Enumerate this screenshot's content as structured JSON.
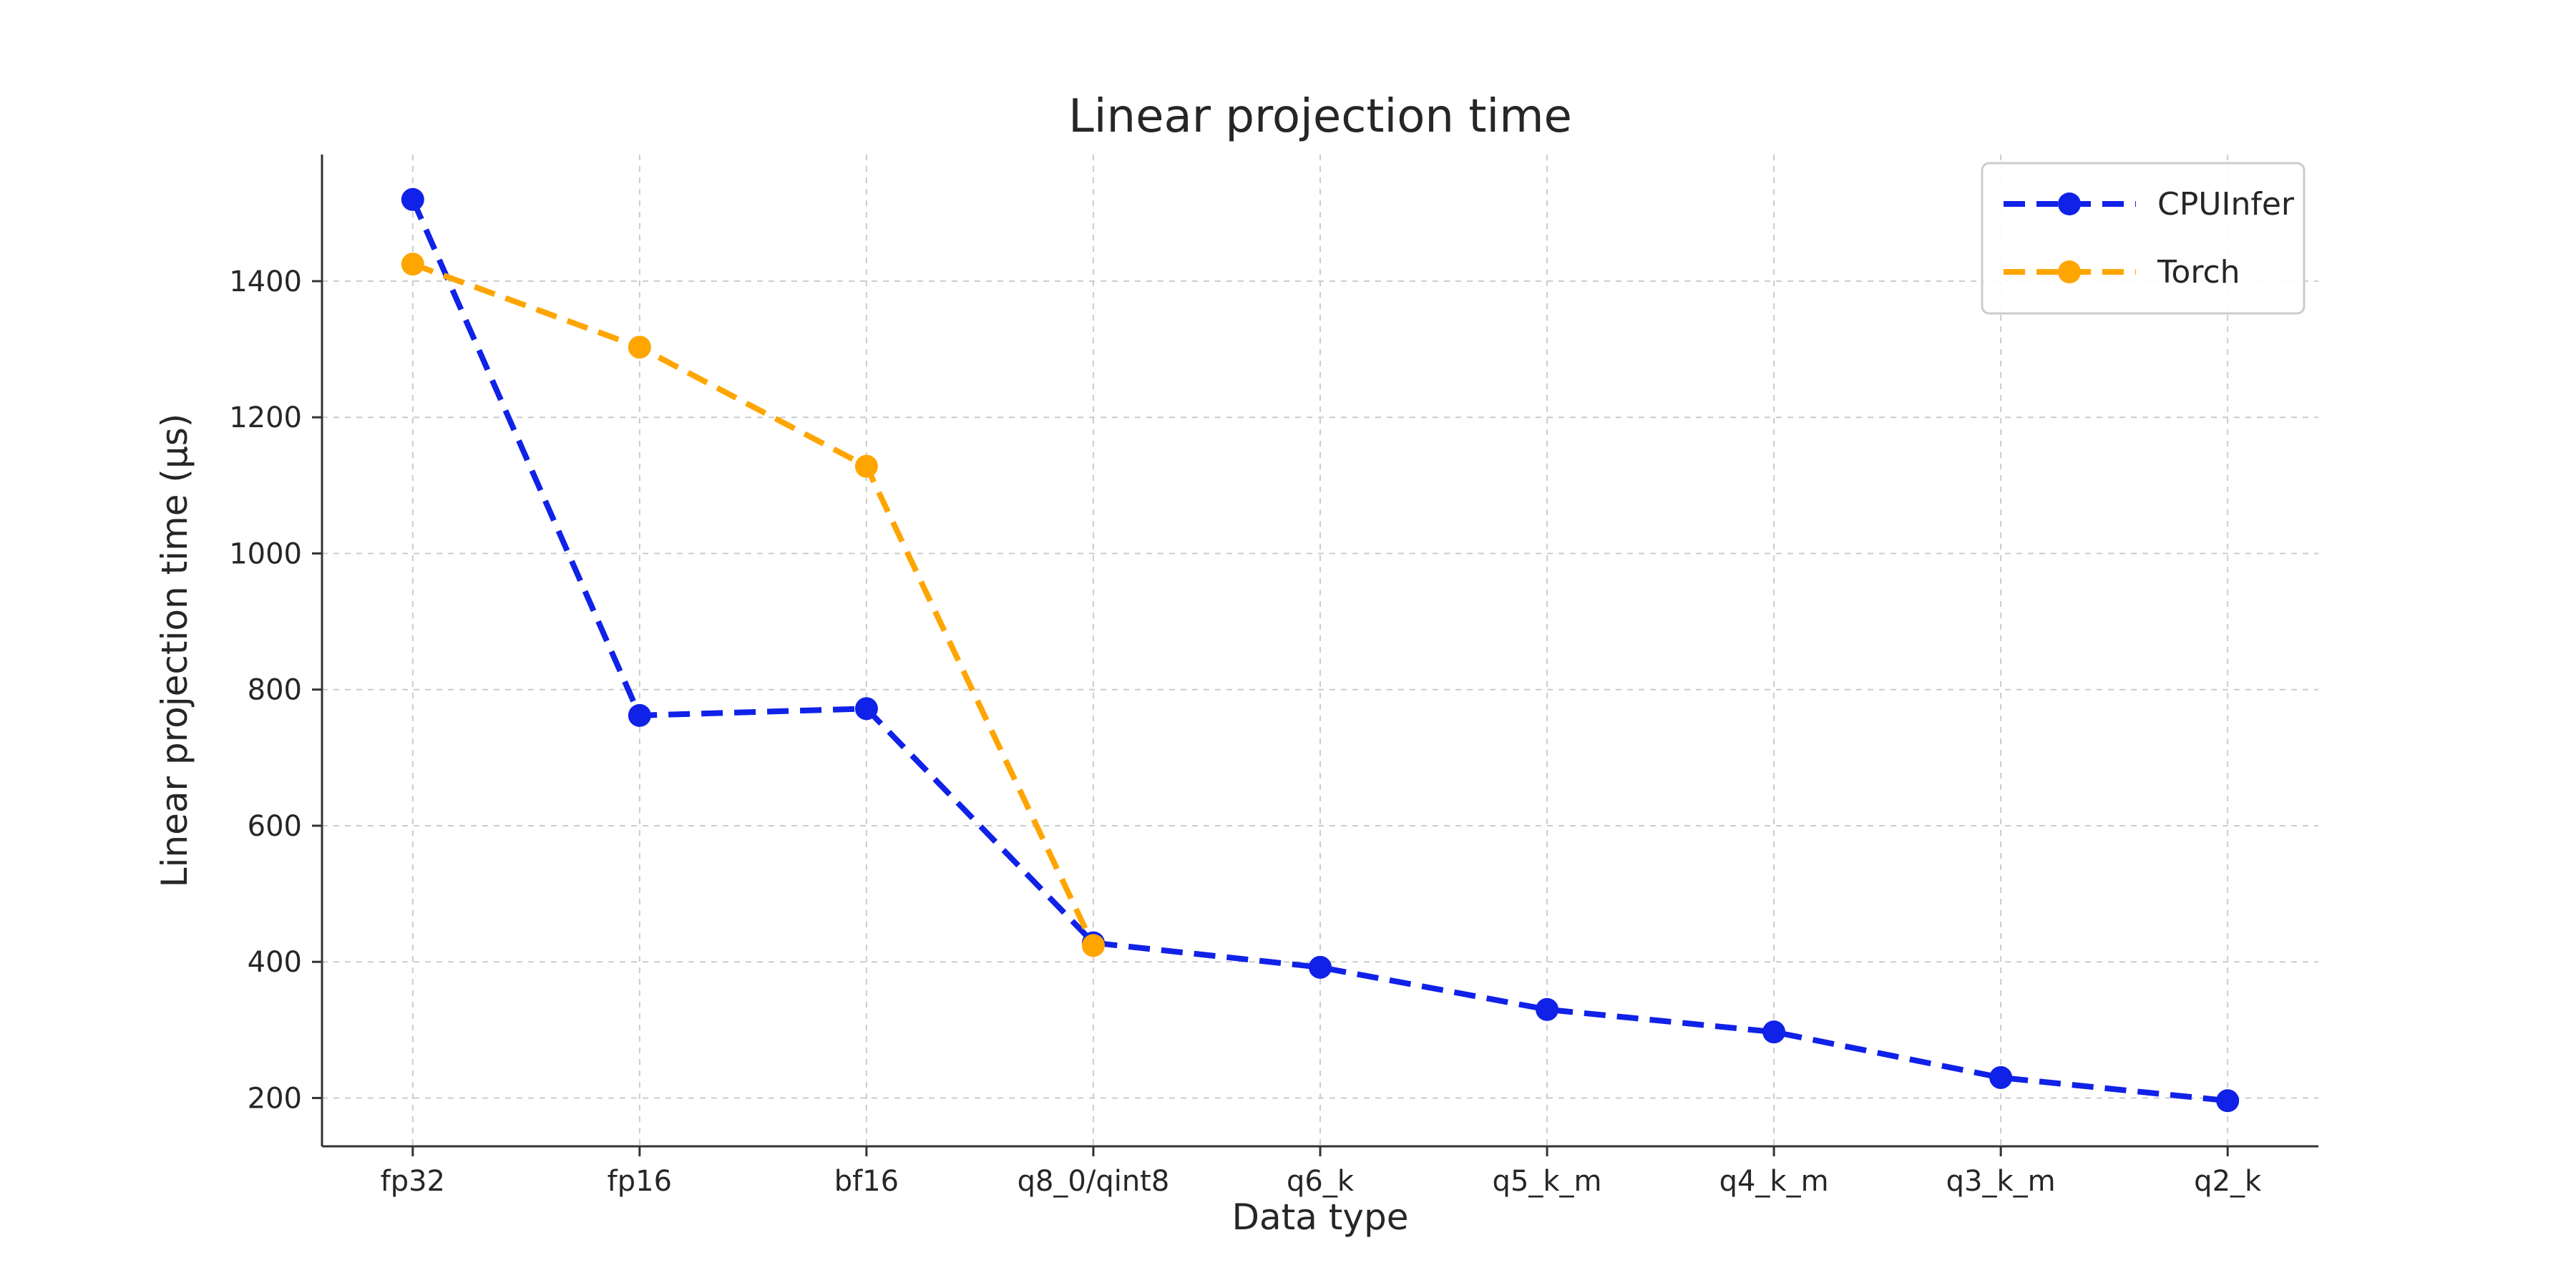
{
  "page": {
    "background": "#ffffff"
  },
  "chart_data": {
    "type": "line",
    "title": "Linear projection time",
    "xlabel": "Data type",
    "ylabel": "Linear projection time (µs)",
    "categories": [
      "fp32",
      "fp16",
      "bf16",
      "q8_0/qint8",
      "q6_k",
      "q5_k_m",
      "q4_k_m",
      "q3_k_m",
      "q2_k"
    ],
    "yticks": [
      200,
      400,
      600,
      800,
      1000,
      1200,
      1400
    ],
    "ylim": [
      129,
      1586
    ],
    "grid": true,
    "grid_color": "#cccccc",
    "text_color": "#262626",
    "legend": {
      "position": "upper right",
      "entries": [
        "CPUInfer",
        "Torch"
      ]
    },
    "series": [
      {
        "name": "CPUInfer",
        "color": "#1021e8",
        "marker": "circle",
        "linestyle": "dashed",
        "values": [
          1520,
          762,
          772,
          428,
          392,
          330,
          297,
          230,
          196
        ]
      },
      {
        "name": "Torch",
        "color": "#ffa500",
        "marker": "circle",
        "linestyle": "dashed",
        "values": [
          1425,
          1303,
          1128,
          424,
          null,
          null,
          null,
          null,
          null
        ]
      }
    ]
  }
}
